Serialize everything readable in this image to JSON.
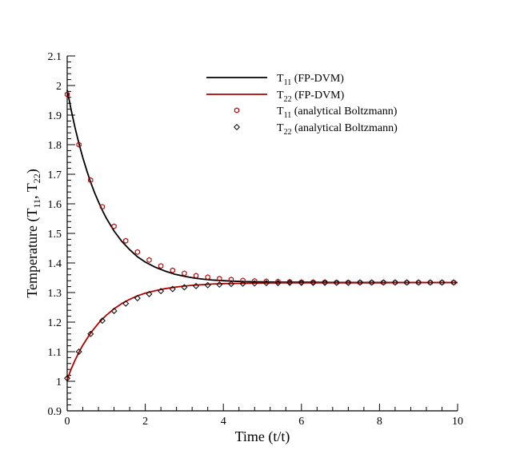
{
  "chart_data": {
    "type": "line",
    "title": "",
    "xlabel": "Time (t/t)",
    "ylabel_parts": {
      "main": "Temperature (T",
      "sub1": "11",
      "mid": ", T",
      "sub2": "22",
      "end": ")"
    },
    "xlim": [
      0,
      10
    ],
    "ylim": [
      0.9,
      2.1
    ],
    "xticks": [
      0,
      2,
      4,
      6,
      8,
      10
    ],
    "xtick_labels": [
      "0",
      "2",
      "4",
      "6",
      "8",
      "10"
    ],
    "yticks": [
      0.9,
      1.0,
      1.1,
      1.2,
      1.3,
      1.4,
      1.5,
      1.6,
      1.7,
      1.8,
      1.9,
      2.0,
      2.1
    ],
    "ytick_labels": [
      "0.9",
      "1",
      "1.1",
      "1.2",
      "1.3",
      "1.4",
      "1.5",
      "1.6",
      "1.7",
      "1.8",
      "1.9",
      "2",
      "2.1"
    ],
    "legend_position": "top-right",
    "series": [
      {
        "name": "T11 (FP-DVM)",
        "legend_main": "T",
        "legend_sub": "11",
        "legend_rest": " (FP-DVM)",
        "style": "line",
        "color": "#000000",
        "x": [
          0,
          0.1,
          0.2,
          0.3,
          0.4,
          0.5,
          0.6,
          0.7,
          0.8,
          0.9,
          1.0,
          1.2,
          1.4,
          1.6,
          1.8,
          2.0,
          2.25,
          2.5,
          2.75,
          3.0,
          3.25,
          3.5,
          3.75,
          4.0,
          4.5,
          5.0,
          5.5,
          6.0,
          7.0,
          8.0,
          9.0,
          10.0
        ],
        "y": [
          1.985,
          1.918,
          1.858,
          1.804,
          1.756,
          1.713,
          1.673,
          1.638,
          1.607,
          1.578,
          1.552,
          1.508,
          1.473,
          1.445,
          1.421,
          1.403,
          1.386,
          1.373,
          1.362,
          1.355,
          1.349,
          1.345,
          1.342,
          1.34,
          1.337,
          1.336,
          1.335,
          1.335,
          1.334,
          1.334,
          1.334,
          1.334
        ]
      },
      {
        "name": "T22 (FP-DVM)",
        "legend_main": "T",
        "legend_sub": "22",
        "legend_rest": " (FP-DVM)",
        "style": "line",
        "color": "#b30000",
        "x": [
          0,
          0.1,
          0.2,
          0.3,
          0.4,
          0.5,
          0.6,
          0.7,
          0.8,
          0.9,
          1.0,
          1.2,
          1.4,
          1.6,
          1.8,
          2.0,
          2.25,
          2.5,
          2.75,
          3.0,
          3.25,
          3.5,
          3.75,
          4.0,
          4.5,
          5.0,
          5.5,
          6.0,
          7.0,
          8.0,
          9.0,
          10.0
        ],
        "y": [
          1.005,
          1.041,
          1.071,
          1.098,
          1.122,
          1.143,
          1.163,
          1.18,
          1.196,
          1.21,
          1.223,
          1.245,
          1.263,
          1.277,
          1.289,
          1.298,
          1.306,
          1.313,
          1.318,
          1.322,
          1.325,
          1.327,
          1.329,
          1.33,
          1.331,
          1.332,
          1.333,
          1.333,
          1.333,
          1.333,
          1.334,
          1.334
        ]
      },
      {
        "name": "T11 (analytical Boltzmann)",
        "legend_main": "T",
        "legend_sub": "11",
        "legend_rest": " (analytical Boltzmann)",
        "style": "hexagon",
        "color": "#b30000",
        "x": [
          0.0,
          0.3,
          0.6,
          0.9,
          1.2,
          1.5,
          1.8,
          2.1,
          2.4,
          2.7,
          3.0,
          3.3,
          3.6,
          3.9,
          4.2,
          4.5,
          4.8,
          5.1,
          5.4,
          5.7,
          6.0,
          6.3,
          6.6,
          6.9,
          7.2,
          7.5,
          7.8,
          8.1,
          8.4,
          8.7,
          9.0,
          9.3,
          9.6,
          9.9
        ],
        "y": [
          1.97,
          1.8,
          1.68,
          1.59,
          1.524,
          1.475,
          1.437,
          1.41,
          1.39,
          1.375,
          1.365,
          1.357,
          1.352,
          1.347,
          1.344,
          1.341,
          1.339,
          1.338,
          1.337,
          1.336,
          1.335,
          1.335,
          1.335,
          1.334,
          1.334,
          1.334,
          1.334,
          1.334,
          1.334,
          1.334,
          1.334,
          1.334,
          1.334,
          1.334
        ]
      },
      {
        "name": "T22 (analytical Boltzmann)",
        "legend_main": "T",
        "legend_sub": "22",
        "legend_rest": " (analytical Boltzmann)",
        "style": "diamond",
        "color": "#000000",
        "x": [
          0.0,
          0.3,
          0.6,
          0.9,
          1.2,
          1.5,
          1.8,
          2.1,
          2.4,
          2.7,
          3.0,
          3.3,
          3.6,
          3.9,
          4.2,
          4.5,
          4.8,
          5.1,
          5.4,
          5.7,
          6.0,
          6.3,
          6.6,
          6.9,
          7.2,
          7.5,
          7.8,
          8.1,
          8.4,
          8.7,
          9.0,
          9.3,
          9.6,
          9.9
        ],
        "y": [
          1.01,
          1.1,
          1.16,
          1.205,
          1.238,
          1.263,
          1.281,
          1.295,
          1.305,
          1.312,
          1.318,
          1.322,
          1.325,
          1.327,
          1.329,
          1.33,
          1.331,
          1.332,
          1.332,
          1.333,
          1.333,
          1.333,
          1.333,
          1.333,
          1.333,
          1.334,
          1.334,
          1.334,
          1.334,
          1.334,
          1.334,
          1.334,
          1.334,
          1.334
        ]
      }
    ]
  }
}
